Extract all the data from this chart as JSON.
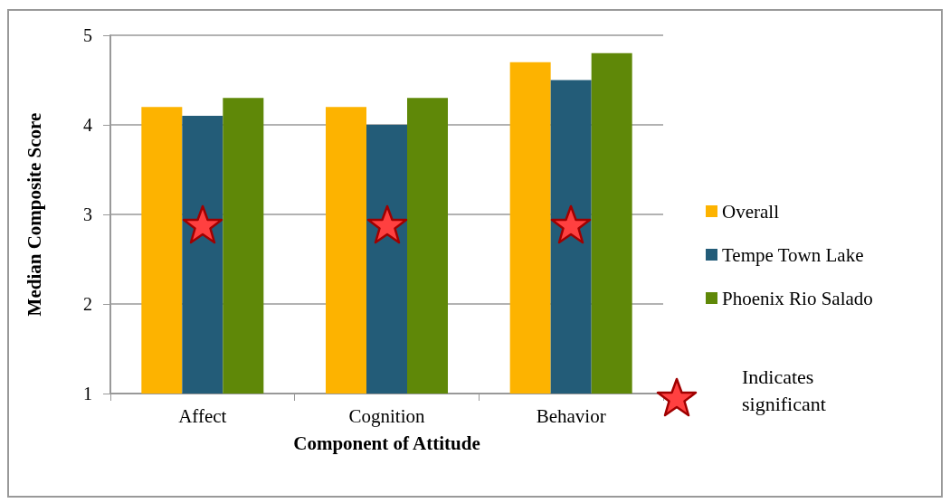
{
  "chart_data": {
    "type": "bar",
    "xlabel": "Component of Attitude",
    "ylabel": "Median Composite Score",
    "categories": [
      "Affect",
      "Cognition",
      "Behavior"
    ],
    "series": [
      {
        "name": "Overall",
        "color": "#fdb300",
        "values": [
          4.2,
          4.2,
          4.7
        ]
      },
      {
        "name": "Tempe Town Lake",
        "color": "#235c78",
        "values": [
          4.1,
          4.0,
          4.5
        ]
      },
      {
        "name": "Phoenix Rio Salado",
        "color": "#5f8808",
        "values": [
          4.3,
          4.3,
          4.8
        ]
      }
    ],
    "ylim": [
      1,
      5
    ],
    "yticks": [
      1,
      2,
      3,
      4,
      5
    ],
    "grid": "y",
    "legend": "right",
    "annotations": [
      "Indicates significant"
    ]
  }
}
